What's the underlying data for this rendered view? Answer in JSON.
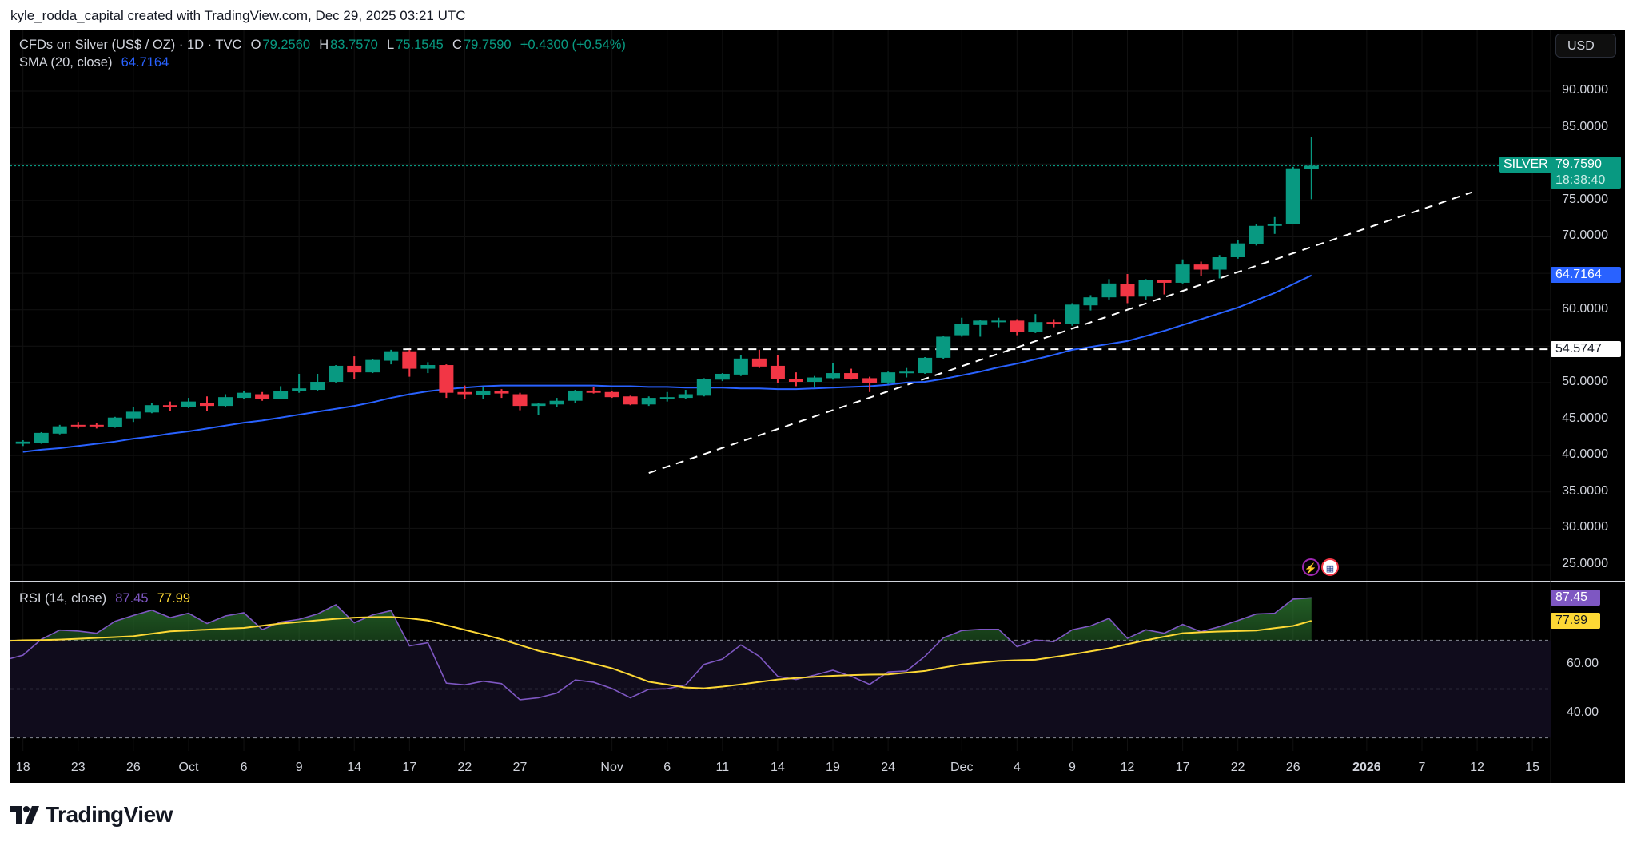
{
  "header": {
    "attribution": "kyle_rodda_capital created with TradingView.com, Dec 29, 2025 03:21 UTC"
  },
  "legend": {
    "symbol": "CFDs on Silver (US$ / OZ) · 1D · TVC",
    "o_label": "O",
    "o_value": "79.2560",
    "h_label": "H",
    "h_value": "83.7570",
    "l_label": "L",
    "l_value": "75.1545",
    "c_label": "C",
    "c_value": "79.7590",
    "change": "+0.4300 (+0.54%)",
    "sma_label": "SMA (20, close)",
    "sma_value": "64.7164",
    "rsi_label": "RSI (14, close)",
    "rsi_value": "87.45",
    "rsi_ma_value": "77.99"
  },
  "toolbar": {
    "currency": "USD"
  },
  "price_axis": {
    "ticks": [
      "90.0000",
      "85.0000",
      "75.0000",
      "70.0000",
      "60.0000",
      "50.0000",
      "45.0000",
      "40.0000",
      "35.0000",
      "30.0000",
      "25.0000"
    ],
    "symbol_tag": "SILVER",
    "last_price": "79.7590",
    "countdown": "18:38:40",
    "sma_tag": "64.7164",
    "hline_tag": "54.5747"
  },
  "rsi_axis": {
    "ticks": [
      "60.00",
      "40.00"
    ],
    "rsi_tag": "87.45",
    "rsi_ma_tag": "77.99"
  },
  "time_axis": [
    {
      "label": "18",
      "bar": 0
    },
    {
      "label": "23",
      "bar": 3
    },
    {
      "label": "26",
      "bar": 6
    },
    {
      "label": "Oct",
      "bar": 9
    },
    {
      "label": "6",
      "bar": 12
    },
    {
      "label": "9",
      "bar": 15
    },
    {
      "label": "14",
      "bar": 18
    },
    {
      "label": "17",
      "bar": 21
    },
    {
      "label": "22",
      "bar": 24
    },
    {
      "label": "27",
      "bar": 27
    },
    {
      "label": "Nov",
      "bar": 32
    },
    {
      "label": "6",
      "bar": 35
    },
    {
      "label": "11",
      "bar": 38
    },
    {
      "label": "14",
      "bar": 41
    },
    {
      "label": "19",
      "bar": 44
    },
    {
      "label": "24",
      "bar": 47
    },
    {
      "label": "Dec",
      "bar": 51
    },
    {
      "label": "4",
      "bar": 54
    },
    {
      "label": "9",
      "bar": 57
    },
    {
      "label": "12",
      "bar": 60
    },
    {
      "label": "17",
      "bar": 63
    },
    {
      "label": "22",
      "bar": 66
    },
    {
      "label": "26",
      "bar": 69
    },
    {
      "label": "2026",
      "bar": 73,
      "bold": true
    },
    {
      "label": "7",
      "bar": 76
    },
    {
      "label": "12",
      "bar": 79
    },
    {
      "label": "15",
      "bar": 82
    }
  ],
  "logo": {
    "text": "TradingView"
  },
  "colors": {
    "up": "#089981",
    "down": "#f23645",
    "sma": "#2962ff",
    "rsi": "#7e57c2",
    "rsi_ma": "#fdd835"
  },
  "chart_data": {
    "type": "candlestick",
    "title": "CFDs on Silver (US$ / OZ) · 1D · TVC",
    "ylim": [
      22,
      95
    ],
    "ohlc": [
      [
        41.6,
        42.1,
        41.3,
        41.9
      ],
      [
        41.7,
        43.2,
        41.6,
        43.1
      ],
      [
        43.0,
        44.2,
        42.9,
        44.0
      ],
      [
        44.2,
        44.6,
        43.7,
        44.0
      ],
      [
        44.2,
        44.5,
        43.7,
        44.0
      ],
      [
        43.9,
        45.3,
        43.8,
        45.2
      ],
      [
        45.1,
        46.6,
        44.6,
        46.0
      ],
      [
        45.9,
        47.2,
        45.8,
        46.9
      ],
      [
        46.9,
        47.4,
        46.1,
        46.6
      ],
      [
        46.6,
        47.9,
        46.5,
        47.4
      ],
      [
        47.2,
        48.1,
        46.1,
        46.8
      ],
      [
        46.8,
        48.4,
        46.6,
        48.0
      ],
      [
        47.9,
        48.8,
        47.8,
        48.6
      ],
      [
        48.4,
        48.7,
        47.5,
        47.8
      ],
      [
        47.7,
        49.5,
        47.7,
        48.8
      ],
      [
        48.8,
        51.2,
        48.6,
        49.2
      ],
      [
        49.0,
        51.2,
        48.9,
        50.1
      ],
      [
        50.1,
        52.4,
        50.0,
        52.3
      ],
      [
        52.3,
        53.6,
        50.5,
        51.4
      ],
      [
        51.4,
        53.2,
        51.3,
        53.1
      ],
      [
        53.0,
        54.5,
        52.5,
        54.3
      ],
      [
        54.3,
        54.5,
        50.8,
        51.9
      ],
      [
        51.9,
        52.8,
        51.3,
        52.4
      ],
      [
        52.4,
        52.5,
        47.9,
        48.6
      ],
      [
        48.7,
        49.6,
        47.7,
        48.4
      ],
      [
        48.3,
        49.4,
        47.8,
        48.9
      ],
      [
        48.8,
        49.1,
        47.9,
        48.5
      ],
      [
        48.4,
        48.6,
        46.2,
        46.8
      ],
      [
        46.8,
        47.2,
        45.5,
        47.1
      ],
      [
        47.0,
        47.9,
        46.7,
        47.5
      ],
      [
        47.5,
        49.0,
        47.2,
        48.9
      ],
      [
        48.9,
        49.4,
        48.5,
        48.6
      ],
      [
        48.7,
        48.9,
        47.9,
        48.0
      ],
      [
        48.1,
        48.2,
        46.9,
        47.0
      ],
      [
        47.0,
        48.1,
        46.8,
        47.9
      ],
      [
        47.9,
        48.7,
        47.4,
        48.0
      ],
      [
        47.9,
        49.0,
        47.8,
        48.4
      ],
      [
        48.2,
        50.6,
        48.1,
        50.5
      ],
      [
        50.4,
        51.3,
        50.2,
        51.2
      ],
      [
        51.1,
        53.8,
        50.9,
        53.3
      ],
      [
        53.3,
        54.5,
        52.0,
        52.2
      ],
      [
        52.3,
        53.8,
        49.9,
        50.5
      ],
      [
        50.5,
        51.4,
        49.5,
        50.1
      ],
      [
        50.1,
        50.9,
        49.3,
        50.7
      ],
      [
        50.6,
        52.7,
        50.4,
        51.3
      ],
      [
        51.3,
        51.9,
        50.4,
        50.5
      ],
      [
        50.6,
        50.8,
        48.7,
        49.9
      ],
      [
        50.0,
        51.5,
        49.8,
        51.4
      ],
      [
        51.4,
        52.0,
        50.7,
        51.5
      ],
      [
        51.3,
        53.5,
        51.2,
        53.4
      ],
      [
        53.4,
        56.4,
        53.2,
        56.3
      ],
      [
        56.5,
        58.9,
        56.3,
        58.0
      ],
      [
        57.9,
        58.6,
        56.3,
        58.5
      ],
      [
        58.4,
        58.9,
        57.6,
        58.5
      ],
      [
        58.5,
        58.7,
        56.5,
        57.0
      ],
      [
        57.0,
        59.4,
        56.8,
        58.3
      ],
      [
        58.3,
        58.7,
        57.6,
        58.2
      ],
      [
        58.1,
        60.9,
        57.8,
        60.7
      ],
      [
        60.6,
        62.0,
        59.9,
        61.7
      ],
      [
        61.7,
        64.2,
        61.4,
        63.6
      ],
      [
        63.5,
        64.9,
        60.9,
        61.8
      ],
      [
        61.8,
        64.2,
        61.4,
        64.1
      ],
      [
        64.1,
        64.1,
        62.1,
        63.7
      ],
      [
        63.7,
        66.9,
        63.6,
        66.2
      ],
      [
        66.2,
        66.6,
        64.6,
        65.5
      ],
      [
        65.5,
        67.5,
        64.3,
        67.2
      ],
      [
        67.2,
        69.6,
        67.0,
        69.1
      ],
      [
        69.0,
        71.7,
        68.8,
        71.5
      ],
      [
        71.5,
        72.7,
        70.4,
        71.8
      ],
      [
        71.8,
        79.6,
        71.7,
        79.4
      ],
      [
        79.256,
        83.757,
        75.1545,
        79.759
      ]
    ],
    "sma20": [
      40.5,
      40.8,
      41.0,
      41.3,
      41.6,
      41.9,
      42.3,
      42.6,
      43.0,
      43.3,
      43.7,
      44.1,
      44.5,
      44.8,
      45.2,
      45.6,
      46.0,
      46.4,
      46.8,
      47.3,
      47.9,
      48.4,
      48.8,
      49.1,
      49.3,
      49.5,
      49.6,
      49.6,
      49.6,
      49.6,
      49.6,
      49.6,
      49.5,
      49.5,
      49.4,
      49.4,
      49.3,
      49.3,
      49.3,
      49.2,
      49.2,
      49.1,
      49.1,
      49.2,
      49.3,
      49.4,
      49.5,
      49.7,
      50.0,
      50.1,
      50.5,
      51.0,
      51.5,
      52.1,
      52.6,
      53.2,
      53.8,
      54.5,
      54.9,
      55.3,
      55.7,
      56.4,
      57.1,
      57.9,
      58.7,
      59.5,
      60.3,
      61.3,
      62.3,
      63.5,
      64.7164
    ],
    "rsi14": [
      63.9,
      70.4,
      74.2,
      73.8,
      72.9,
      77.8,
      80.2,
      82.4,
      79.3,
      81.1,
      76.9,
      80.0,
      81.3,
      74.4,
      77.5,
      78.6,
      80.8,
      84.6,
      77.2,
      80.4,
      82.2,
      67.7,
      69.0,
      52.4,
      51.7,
      53.2,
      52.2,
      45.6,
      46.4,
      48.3,
      53.7,
      52.8,
      50.2,
      46.4,
      49.9,
      50.1,
      51.7,
      60.1,
      62.3,
      68.1,
      63.4,
      55.2,
      53.9,
      55.7,
      57.7,
      55.2,
      51.9,
      57.0,
      57.4,
      63.4,
      71.0,
      74.0,
      74.5,
      74.5,
      67.4,
      70.1,
      69.4,
      74.3,
      75.9,
      79.0,
      70.8,
      74.3,
      72.9,
      76.5,
      73.5,
      75.6,
      78.1,
      80.8,
      81.1,
      86.9,
      87.45
    ],
    "rsi_ma": [
      70.0,
      70.1,
      70.3,
      70.6,
      71.0,
      71.3,
      71.7,
      72.7,
      73.7,
      74.0,
      74.4,
      74.8,
      75.1,
      76.0,
      76.9,
      77.5,
      78.2,
      78.8,
      79.3,
      79.5,
      79.6,
      79.0,
      78.1,
      76.2,
      74.3,
      72.4,
      70.4,
      68.0,
      65.7,
      64.0,
      62.3,
      60.4,
      58.5,
      55.8,
      53.0,
      51.8,
      50.6,
      50.3,
      51.0,
      51.9,
      52.9,
      53.9,
      54.5,
      55.0,
      55.4,
      55.7,
      55.9,
      56.0,
      56.7,
      57.4,
      58.8,
      60.1,
      60.8,
      61.5,
      61.8,
      62.0,
      63.1,
      64.2,
      65.5,
      66.7,
      68.4,
      70.0,
      71.5,
      72.9,
      73.3,
      73.6,
      73.8,
      74.0,
      75.0,
      75.9,
      77.99
    ],
    "rsi_bands": [
      70,
      50,
      30
    ],
    "trendline": {
      "from": {
        "bar": 34.0,
        "price": 37.6
      },
      "to": {
        "bar": 78.7,
        "price": 76.1
      }
    },
    "hline": {
      "from_bar": 21,
      "price": 54.5747
    }
  }
}
